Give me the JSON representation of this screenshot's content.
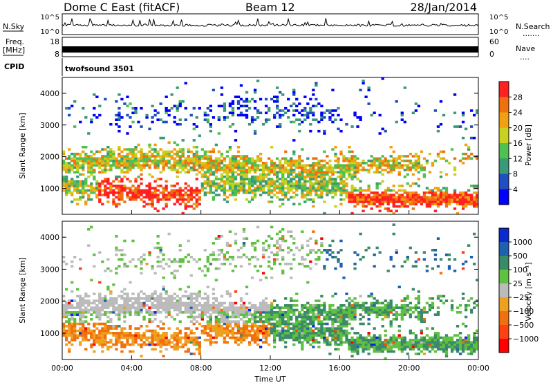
{
  "header": {
    "station": "Dome C East (fitACF)",
    "beam": "Beam 12",
    "date": "28/Jan/2014"
  },
  "aux": {
    "nsky_label": "N.Sky",
    "nsearch_label": "N.Search",
    "nsearch_dots": ".......",
    "freq_label_1": "Freq.",
    "freq_label_2": "[MHz]",
    "nave_label": "Nave",
    "nave_dots": "....",
    "cpid_label": "CPID",
    "cpid_value": "twofsound 3501",
    "noise_ticks_left": [
      "10^5",
      "10^0"
    ],
    "noise_ticks_right": [
      "10^5",
      "10^0"
    ],
    "freq_ticks_left": [
      "18",
      "8"
    ],
    "nave_ticks_right": [
      "60",
      "0"
    ]
  },
  "chart_data": [
    {
      "type": "heatmap",
      "name": "power",
      "ylabel": "Slant Range [km]",
      "xlabel": "",
      "x_ticks": [
        "00:00",
        "04:00",
        "08:00",
        "12:00",
        "16:00",
        "20:00",
        "00:00"
      ],
      "xlim_hours": [
        0,
        24
      ],
      "ylim": [
        180,
        4500
      ],
      "y_ticks": [
        1000,
        2000,
        3000,
        4000
      ],
      "colorbar": {
        "label": "Power [dB]",
        "ticks": [
          "4",
          "8",
          "12",
          "16",
          "20",
          "24",
          "28"
        ],
        "colors": [
          "#0000ff",
          "#2050c0",
          "#3a9a78",
          "#50c050",
          "#c8d020",
          "#f0a010",
          "#f07010",
          "#ff2020"
        ]
      }
    },
    {
      "type": "heatmap",
      "name": "velocity",
      "ylabel": "Slant Range [km]",
      "xlabel": "Time UT",
      "x_ticks": [
        "00:00",
        "04:00",
        "08:00",
        "12:00",
        "16:00",
        "20:00",
        "00:00"
      ],
      "xlim_hours": [
        0,
        24
      ],
      "ylim": [
        180,
        4500
      ],
      "y_ticks": [
        1000,
        2000,
        3000,
        4000
      ],
      "colorbar": {
        "label": "Velocity [m s⁻¹]",
        "ticks": [
          "1000",
          "500",
          "100",
          "25",
          "−25",
          "−100",
          "−500",
          "−1000"
        ],
        "colors": [
          "#0a2ad0",
          "#2060b0",
          "#3a8a6a",
          "#60c040",
          "#bbbbbb",
          "#f0a020",
          "#f07010",
          "#ff4010",
          "#ff0000"
        ]
      }
    }
  ]
}
